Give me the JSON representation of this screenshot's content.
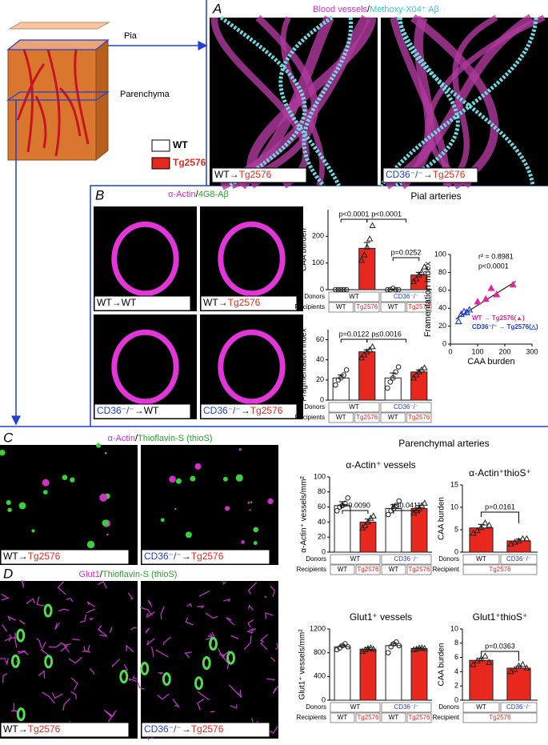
{
  "schematic": {
    "pia": "Pia",
    "parenchyma": "Parenchyma",
    "legend": [
      {
        "label": "WT",
        "color": "#ffffff"
      },
      {
        "label": "Tg2576",
        "color": "#e8281e"
      }
    ]
  },
  "panel_A": {
    "letter": "A",
    "title_1": "Blood vessels",
    "title_sep": "/",
    "title_2": "Methoxy-X04⁺ Aβ",
    "images": [
      {
        "donor": "WT",
        "donor_color": "#000000",
        "arrow": "→",
        "recipient": "Tg2576"
      },
      {
        "donor": "CD36⁻/⁻",
        "donor_color": "#1f3fd6",
        "arrow": "→",
        "recipient": "Tg2576"
      }
    ]
  },
  "panel_B": {
    "letter": "B",
    "stain_1": "α-Actin",
    "stain_sep": "/",
    "stain_2": "4G8-Aβ",
    "section_title": "Pial arteries",
    "images": [
      {
        "donor": "WT",
        "donor_color": "#000000",
        "arrow": "→",
        "recipient": "WT",
        "recipient_color": "#000000"
      },
      {
        "donor": "WT",
        "donor_color": "#000000",
        "arrow": "→",
        "recipient": "Tg2576",
        "recipient_color": "#e8281e"
      },
      {
        "donor": "CD36⁻/⁻",
        "donor_color": "#1f3fd6",
        "arrow": "→",
        "recipient": "WT",
        "recipient_color": "#000000"
      },
      {
        "donor": "CD36⁻/⁻",
        "donor_color": "#1f3fd6",
        "arrow": "→",
        "recipient": "Tg2576",
        "recipient_color": "#e8281e"
      }
    ]
  },
  "panel_C": {
    "letter": "C",
    "stain_1": "α-Actin",
    "stain_sep": "/",
    "stain_2": "Thioflavin-S (thioS)",
    "section_title": "Parenchymal arteries",
    "images": [
      {
        "donor": "WT",
        "donor_color": "#000000",
        "arrow": "→",
        "recipient": "Tg2576"
      },
      {
        "donor": "CD36⁻/⁻",
        "donor_color": "#1f3fd6",
        "arrow": "→",
        "recipient": "Tg2576"
      }
    ]
  },
  "panel_D": {
    "letter": "D",
    "stain_1": "Glut1",
    "stain_sep": "/",
    "stain_2": "Thioflavin-S (thioS)",
    "images": [
      {
        "donor": "WT",
        "donor_color": "#000000",
        "arrow": "→",
        "recipient": "Tg2576"
      },
      {
        "donor": "CD36⁻/⁻",
        "donor_color": "#1f3fd6",
        "arrow": "→",
        "recipient": "Tg2576"
      }
    ]
  },
  "chart_data": [
    {
      "type": "bar",
      "ylabel": "CAA burden",
      "values": [
        0,
        155,
        0,
        55
      ],
      "errors": [
        0,
        22,
        1,
        10
      ],
      "colors": [
        "#ffffff",
        "#e8281e",
        "#ffffff",
        "#e8281e"
      ],
      "markers": [
        "circle",
        "triangle",
        "circle",
        "triangle"
      ],
      "points": [
        [
          0,
          0,
          0,
          0,
          0
        ],
        [
          110,
          130,
          160,
          190,
          240
        ],
        [
          0,
          0,
          5,
          0,
          0
        ],
        [
          30,
          40,
          55,
          65,
          85
        ]
      ],
      "ylim": [
        0,
        300
      ],
      "yticks": [
        0,
        100,
        200
      ],
      "row_labels": [
        "Donors",
        "Recipients"
      ],
      "donors": [
        "WT",
        "CD36⁻/⁻"
      ],
      "donor_colors": [
        "#000000",
        "#1f3fd6"
      ],
      "recipients": [
        "WT",
        "Tg2576",
        "WT",
        "Tg2576"
      ],
      "recipient_colors": [
        "#000000",
        "#e8281e",
        "#000000",
        "#e8281e"
      ],
      "annotations": [
        "p<0.0001",
        "p<0.0001",
        "p=0.0252"
      ]
    },
    {
      "type": "bar",
      "ylabel": "Fragmentation index",
      "values": [
        22,
        48,
        22,
        28
      ],
      "errors": [
        3,
        2,
        5,
        2
      ],
      "colors": [
        "#ffffff",
        "#e8281e",
        "#ffffff",
        "#e8281e"
      ],
      "markers": [
        "circle",
        "triangle",
        "circle",
        "triangle"
      ],
      "points": [
        [
          15,
          20,
          22,
          25,
          30
        ],
        [
          42,
          45,
          48,
          50,
          53
        ],
        [
          12,
          18,
          22,
          28,
          33
        ],
        [
          22,
          25,
          28,
          30,
          32
        ]
      ],
      "ylim": [
        0,
        70
      ],
      "yticks": [
        0,
        20,
        40,
        60
      ],
      "row_labels": [
        "Donors",
        "Recipients"
      ],
      "donors": [
        "WT",
        "CD36⁻/⁻"
      ],
      "donor_colors": [
        "#000000",
        "#1f3fd6"
      ],
      "recipients": [
        "WT",
        "Tg2576",
        "WT",
        "Tg2576"
      ],
      "recipient_colors": [
        "#000000",
        "#e8281e",
        "#000000",
        "#e8281e"
      ],
      "annotations": [
        "p=0.0122",
        "p≤0.0016"
      ]
    },
    {
      "type": "scatter",
      "xlabel": "CAA burden",
      "ylabel": "Framentation index",
      "xlim": [
        0,
        300
      ],
      "xticks": [
        0,
        100,
        200,
        300
      ],
      "ylim": [
        0,
        100
      ],
      "yticks": [
        0,
        20,
        40,
        60,
        80,
        100
      ],
      "series": [
        {
          "name": "WT → Tg2576(▲)",
          "color": "#e0289a",
          "marker": "filled-triangle",
          "x": [
            100,
            130,
            150,
            170,
            230
          ],
          "y": [
            47,
            50,
            62,
            55,
            66
          ]
        },
        {
          "name": "CD36⁻/⁻ → Tg2576(△)",
          "color": "#1f3fd6",
          "marker": "open-triangle",
          "x": [
            30,
            40,
            50,
            60,
            70
          ],
          "y": [
            25,
            33,
            36,
            35,
            38
          ]
        }
      ],
      "fit_line": {
        "x": [
          20,
          240
        ],
        "y": [
          28,
          70
        ]
      },
      "annotations": [
        "r² = 0.8981",
        "p<0.0001"
      ]
    },
    {
      "type": "bar",
      "title": "α-Actin⁺ vessels",
      "ylabel": "α-Actin⁺ vessels/mm²",
      "values": [
        62,
        40,
        58,
        58
      ],
      "errors": [
        5,
        4,
        5,
        4
      ],
      "colors": [
        "#ffffff",
        "#e8281e",
        "#ffffff",
        "#e8281e"
      ],
      "markers": [
        "circle",
        "triangle",
        "circle",
        "triangle"
      ],
      "points": [
        [
          55,
          60,
          62,
          65,
          72
        ],
        [
          32,
          35,
          40,
          45,
          48
        ],
        [
          50,
          55,
          58,
          62,
          68
        ],
        [
          52,
          55,
          58,
          62,
          65
        ]
      ],
      "ylim": [
        0,
        100
      ],
      "yticks": [
        0,
        20,
        40,
        60,
        80,
        100
      ],
      "row_labels": [
        "Donors",
        "Recipients"
      ],
      "donors": [
        "WT",
        "CD36⁻/⁻"
      ],
      "donor_colors": [
        "#000000",
        "#1f3fd6"
      ],
      "recipients": [
        "WT",
        "Tg2576",
        "WT",
        "Tg2576"
      ],
      "recipient_colors": [
        "#000000",
        "#e8281e",
        "#000000",
        "#e8281e"
      ],
      "annotations": [
        "p=0.0090",
        "p≤0.0411"
      ]
    },
    {
      "type": "bar",
      "title": "α-Actin⁺thioS⁺",
      "ylabel": "CAA burden",
      "values": [
        5.4,
        2.5
      ],
      "errors": [
        0.8,
        0.4
      ],
      "colors": [
        "#e8281e",
        "#e8281e"
      ],
      "markers": [
        "triangle",
        "triangle"
      ],
      "points": [
        [
          4.2,
          4.8,
          5.5,
          6.5,
          6.0
        ],
        [
          1.8,
          2.2,
          2.5,
          3.0,
          3.0
        ]
      ],
      "ylim": [
        0,
        15
      ],
      "yticks": [
        0,
        5,
        10,
        15
      ],
      "row_labels": [
        "Donors",
        "Recipient"
      ],
      "donors": [
        "WT",
        "CD36⁻/⁻"
      ],
      "donor_colors": [
        "#000000",
        "#1f3fd6"
      ],
      "recipients": [
        "Tg2576"
      ],
      "recipient_colors": [
        "#e8281e"
      ],
      "annotations": [
        "p=0.0161"
      ]
    },
    {
      "type": "bar",
      "title": "Glut1⁺ vessels",
      "ylabel": "Glut1⁺ vessels/mm²",
      "values": [
        900,
        860,
        920,
        870
      ],
      "errors": [
        30,
        25,
        40,
        15
      ],
      "colors": [
        "#ffffff",
        "#e8281e",
        "#ffffff",
        "#e8281e"
      ],
      "markers": [
        "circle",
        "triangle",
        "circle",
        "triangle"
      ],
      "points": [
        [
          850,
          880,
          920,
          950,
          900
        ],
        [
          820,
          850,
          870,
          880,
          860
        ],
        [
          800,
          900,
          950,
          980,
          920
        ],
        [
          850,
          860,
          880,
          880,
          870
        ]
      ],
      "ylim": [
        0,
        1200
      ],
      "yticks": [
        0,
        400,
        800,
        1200
      ],
      "row_labels": [
        "Donors",
        "Recipients"
      ],
      "donors": [
        "WT",
        "CD36⁻/⁻"
      ],
      "donor_colors": [
        "#000000",
        "#1f3fd6"
      ],
      "recipients": [
        "WT",
        "Tg2576",
        "WT",
        "Tg2576"
      ],
      "recipient_colors": [
        "#000000",
        "#e8281e",
        "#000000",
        "#e8281e"
      ],
      "annotations": []
    },
    {
      "type": "bar",
      "title": "Glut1⁺thioS⁺",
      "ylabel": "CAA burden",
      "values": [
        5.6,
        4.5
      ],
      "errors": [
        0.3,
        0.3
      ],
      "colors": [
        "#e8281e",
        "#e8281e"
      ],
      "markers": [
        "triangle",
        "triangle"
      ],
      "points": [
        [
          5.0,
          5.5,
          5.8,
          6.2,
          5.3
        ],
        [
          4.0,
          4.3,
          4.8,
          5.0,
          4.5
        ]
      ],
      "ylim": [
        0,
        10
      ],
      "yticks": [
        0,
        2,
        4,
        6,
        8,
        10
      ],
      "row_labels": [
        "Donors",
        "Recipient"
      ],
      "donors": [
        "WT",
        "CD36⁻/⁻"
      ],
      "donor_colors": [
        "#000000",
        "#1f3fd6"
      ],
      "recipients": [
        "Tg2576"
      ],
      "recipient_colors": [
        "#e8281e"
      ],
      "annotations": [
        "p=0.0363"
      ]
    }
  ]
}
